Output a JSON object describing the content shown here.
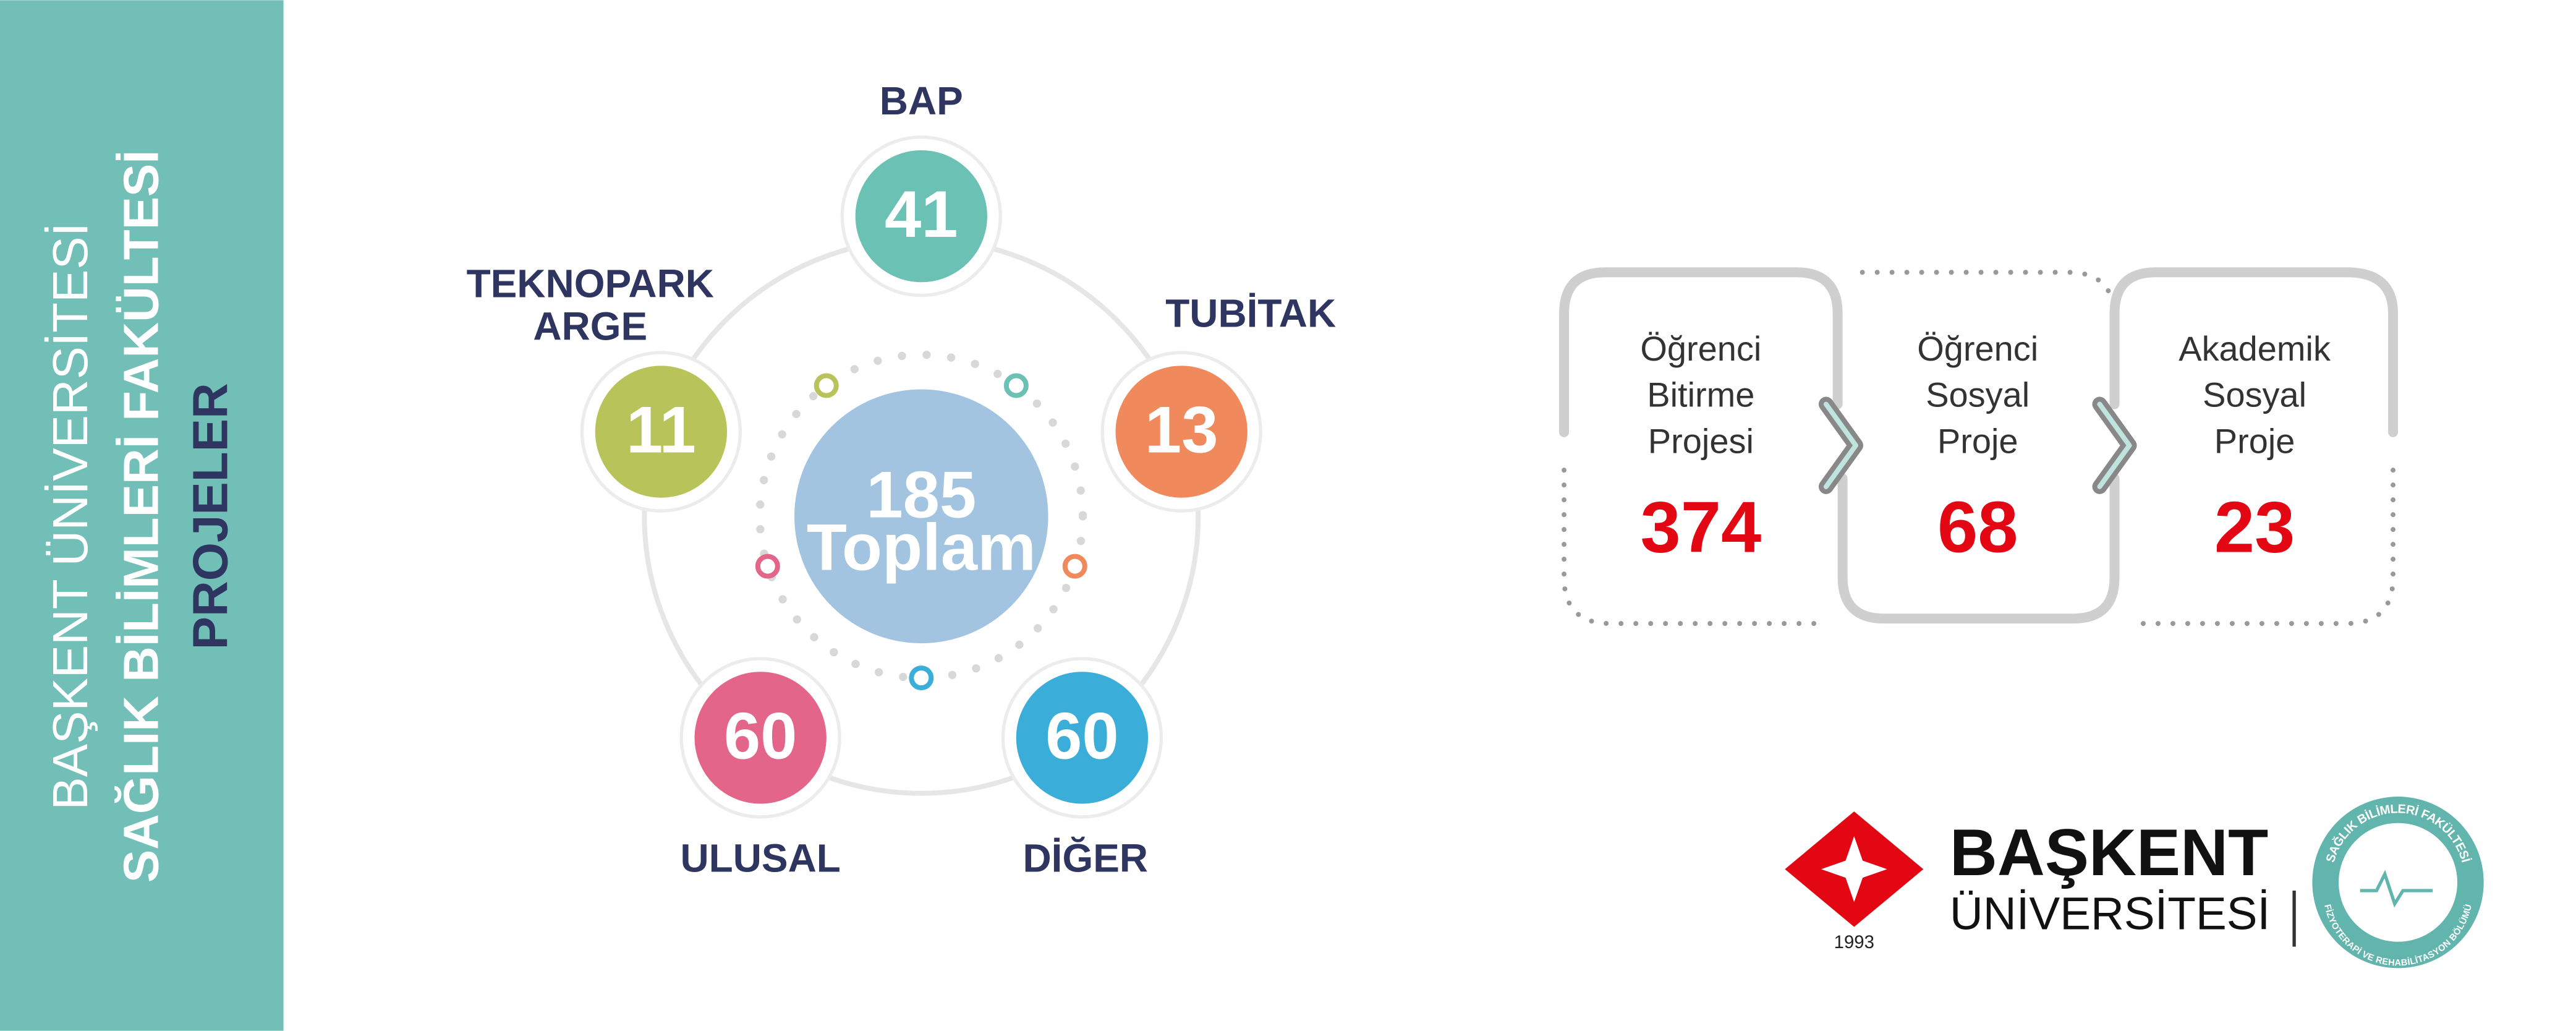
{
  "sidebar": {
    "lines": [
      "BAŞKENT ÜNİVERSİTESİ",
      "SAĞLIK BİLİMLERİ FAKÜLTESİ",
      "PROJELER"
    ]
  },
  "projects": {
    "total": {
      "value": 185,
      "label": "Toplam",
      "color": "#a3c4e0"
    },
    "items": [
      {
        "label_lines": [
          "BAP"
        ],
        "value": 41,
        "color": "#6cc1b5"
      },
      {
        "label_lines": [
          "TUBİTAK"
        ],
        "value": 13,
        "color": "#f08a5d"
      },
      {
        "label_lines": [
          "DİĞER"
        ],
        "value": 60,
        "color": "#3aaed8"
      },
      {
        "label_lines": [
          "ULUSAL"
        ],
        "value": 60,
        "color": "#e4658a"
      },
      {
        "label_lines": [
          "TEKNOPARK",
          "ARGE"
        ],
        "value": 11,
        "color": "#b8c45a"
      }
    ]
  },
  "student": {
    "value_color": "#e30613",
    "items": [
      {
        "label_lines": [
          "Öğrenci",
          "Bitirme",
          "Projesi"
        ],
        "value": 374
      },
      {
        "label_lines": [
          "Öğrenci",
          "Sosyal",
          "Proje"
        ],
        "value": 68
      },
      {
        "label_lines": [
          "Akademik",
          "Sosyal",
          "Proje"
        ],
        "value": 23
      }
    ]
  },
  "logo": {
    "name": "BAŞKENT",
    "subtitle": "ÜNİVERSİTESİ",
    "year": "1993",
    "badge_top": "SAĞLIK BİLİMLERİ FAKÜLTESİ",
    "badge_bottom": "FİZYOTERAPİ VE REHABİLİTASYON BÖLÜMÜ"
  }
}
